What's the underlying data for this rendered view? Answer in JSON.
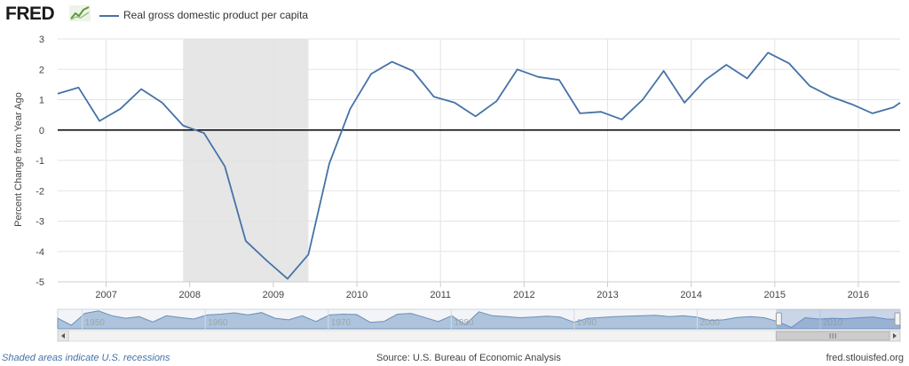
{
  "header": {
    "logo_text": "FRED",
    "logo_icon": "trend-line-icon",
    "legend_label": "Real gross domestic product per capita",
    "series_color": "#4572a7"
  },
  "footer": {
    "recession_note": "Shaded areas indicate U.S. recessions",
    "source": "Source: U.S. Bureau of Economic Analysis",
    "site": "fred.stlouisfed.org"
  },
  "chart_data": {
    "type": "line",
    "title": "",
    "xlabel": "",
    "ylabel": "Percent Change from Year Ago",
    "ylim": [
      -5,
      3
    ],
    "yticks": [
      3,
      2,
      1,
      0,
      -1,
      -2,
      -3,
      -4,
      -5
    ],
    "xlim": [
      2006.42,
      2016.5
    ],
    "xticks": [
      2007,
      2008,
      2009,
      2010,
      2011,
      2012,
      2013,
      2014,
      2015,
      2016
    ],
    "zero_line": true,
    "recessions": [
      {
        "start": 2007.92,
        "end": 2009.42
      }
    ],
    "series": [
      {
        "name": "Real gross domestic product per capita",
        "color": "#4572a7",
        "x": [
          2006.42,
          2006.67,
          2006.92,
          2007.17,
          2007.42,
          2007.67,
          2007.92,
          2008.17,
          2008.42,
          2008.67,
          2008.92,
          2009.17,
          2009.42,
          2009.67,
          2009.92,
          2010.17,
          2010.42,
          2010.67,
          2010.92,
          2011.17,
          2011.42,
          2011.67,
          2011.92,
          2012.17,
          2012.42,
          2012.67,
          2012.92,
          2013.17,
          2013.42,
          2013.67,
          2013.92,
          2014.17,
          2014.42,
          2014.67,
          2014.92,
          2015.17,
          2015.42,
          2015.67,
          2015.92,
          2016.17,
          2016.42,
          2016.5
        ],
        "values": [
          1.2,
          1.4,
          0.3,
          0.7,
          1.35,
          0.9,
          0.15,
          -0.1,
          -1.2,
          -3.65,
          -4.3,
          -4.9,
          -4.1,
          -1.1,
          0.7,
          1.85,
          2.25,
          1.95,
          1.1,
          0.9,
          0.45,
          0.95,
          2.0,
          1.75,
          1.65,
          0.55,
          0.6,
          0.35,
          1.0,
          1.95,
          0.9,
          1.65,
          2.15,
          1.7,
          2.55,
          2.2,
          1.45,
          1.1,
          0.85,
          0.55,
          0.75,
          0.9
        ]
      }
    ],
    "navigator": {
      "tick_labels": [
        "1950",
        "1960",
        "1970",
        "1980",
        "1990",
        "2000",
        "2010"
      ],
      "range_start": 1948,
      "range_end": 2016.5,
      "selected_start": 2006.42,
      "selected_end": 2016.5,
      "values": [
        1.5,
        -2.8,
        4.5,
        6.0,
        3.0,
        1.5,
        2.5,
        -0.8,
        3.0,
        2.0,
        1.0,
        3.5,
        4.0,
        4.8,
        3.5,
        5.0,
        1.5,
        0.5,
        3.0,
        -0.5,
        3.5,
        4.0,
        3.8,
        -1.0,
        -0.5,
        4.0,
        4.5,
        2.0,
        -0.5,
        3.0,
        -2.5,
        5.5,
        3.0,
        2.5,
        1.8,
        2.2,
        2.8,
        2.2,
        -1.0,
        1.5,
        2.0,
        2.5,
        2.8,
        3.0,
        3.3,
        2.5,
        3.0,
        2.2,
        0.2,
        0.5,
        2.0,
        2.5,
        1.8,
        -0.5,
        -4.2,
        1.8,
        1.0,
        1.5,
        1.2,
        1.8,
        2.2,
        1.0,
        0.9
      ]
    }
  }
}
